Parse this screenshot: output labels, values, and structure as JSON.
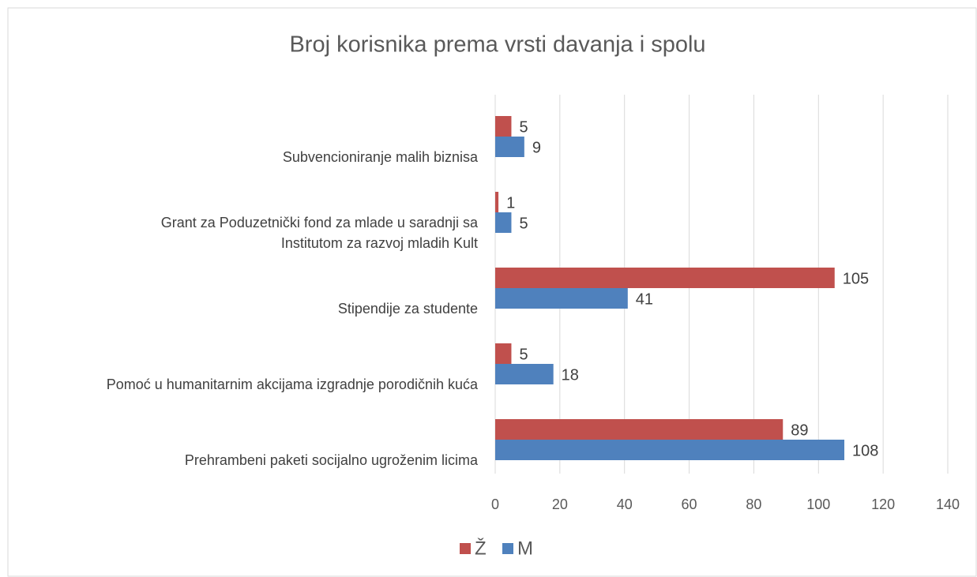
{
  "chart_data": {
    "type": "hbar",
    "title": "Broj korisnika prema vrsti davanja i spolu",
    "categories": [
      "Subvencioniranje malih biznisa",
      "Grant za Poduzetnički fond za mlade u saradnji sa\nInstitutom za razvoj mladih Kult",
      "Stipendije za studente",
      "Pomoć u humanitarnim akcijama izgradnje porodičnih kuća",
      "Prehrambeni paketi socijalno ugroženim licima"
    ],
    "series": [
      {
        "name": "Ž",
        "color": "#c0504d",
        "values": [
          5,
          1,
          105,
          5,
          89
        ]
      },
      {
        "name": "M",
        "color": "#4f81bd",
        "values": [
          9,
          5,
          41,
          18,
          108
        ]
      }
    ],
    "xlim": [
      0,
      140
    ],
    "xticks": [
      0,
      20,
      40,
      60,
      80,
      100,
      120,
      140
    ],
    "grid": true,
    "legend": "bottom"
  }
}
